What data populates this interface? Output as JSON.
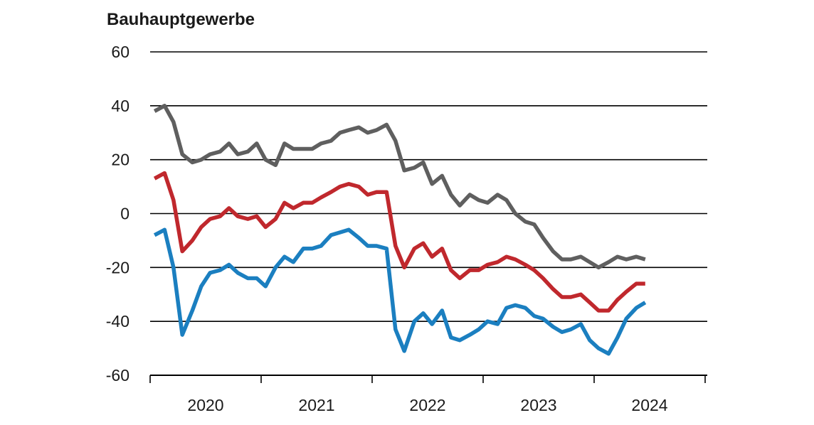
{
  "chart_data": {
    "type": "line",
    "title": "Bauhauptgewerbe",
    "xlabel": "",
    "ylabel": "",
    "ylim": [
      -60,
      60
    ],
    "yticks": [
      -60,
      -40,
      -20,
      0,
      20,
      40,
      60
    ],
    "ytick_labels": [
      "-60",
      "-40",
      "-20",
      "0",
      "20",
      "40",
      "60"
    ],
    "xlim": [
      2020.0,
      2025.0
    ],
    "year_labels": [
      "2020",
      "2021",
      "2022",
      "2023",
      "2024"
    ],
    "grid": true,
    "series": [
      {
        "color": "#5f5f5f",
        "x": [
          2020.04,
          2020.13,
          2020.21,
          2020.29,
          2020.38,
          2020.46,
          2020.54,
          2020.63,
          2020.71,
          2020.79,
          2020.88,
          2020.96,
          2021.04,
          2021.13,
          2021.21,
          2021.29,
          2021.38,
          2021.46,
          2021.54,
          2021.63,
          2021.71,
          2021.79,
          2021.88,
          2021.96,
          2022.04,
          2022.13,
          2022.21,
          2022.29,
          2022.38,
          2022.46,
          2022.54,
          2022.63,
          2022.71,
          2022.79,
          2022.88,
          2022.96,
          2023.04,
          2023.13,
          2023.21,
          2023.29,
          2023.38,
          2023.46,
          2023.54,
          2023.63,
          2023.71,
          2023.79,
          2023.88,
          2023.96,
          2024.04,
          2024.13,
          2024.21,
          2024.29,
          2024.38,
          2024.46
        ],
        "values": [
          38,
          40,
          34,
          22,
          19,
          20,
          22,
          23,
          26,
          22,
          23,
          26,
          20,
          18,
          26,
          24,
          24,
          24,
          26,
          27,
          30,
          31,
          32,
          30,
          31,
          33,
          27,
          16,
          17,
          19,
          11,
          14,
          7,
          3,
          7,
          5,
          4,
          7,
          5,
          0,
          -3,
          -4,
          -9,
          -14,
          -17,
          -17,
          -16,
          -18,
          -20,
          -18,
          -16,
          -17,
          -16,
          -17
        ]
      },
      {
        "color": "#c0282d",
        "x": [
          2020.04,
          2020.13,
          2020.21,
          2020.29,
          2020.38,
          2020.46,
          2020.54,
          2020.63,
          2020.71,
          2020.79,
          2020.88,
          2020.96,
          2021.04,
          2021.13,
          2021.21,
          2021.29,
          2021.38,
          2021.46,
          2021.54,
          2021.63,
          2021.71,
          2021.79,
          2021.88,
          2021.96,
          2022.04,
          2022.13,
          2022.21,
          2022.29,
          2022.38,
          2022.46,
          2022.54,
          2022.63,
          2022.71,
          2022.79,
          2022.88,
          2022.96,
          2023.04,
          2023.13,
          2023.21,
          2023.29,
          2023.38,
          2023.46,
          2023.54,
          2023.63,
          2023.71,
          2023.79,
          2023.88,
          2023.96,
          2024.04,
          2024.13,
          2024.21,
          2024.29,
          2024.38,
          2024.46
        ],
        "values": [
          13,
          15,
          5,
          -14,
          -10,
          -5,
          -2,
          -1,
          2,
          -1,
          -2,
          -1,
          -5,
          -2,
          4,
          2,
          4,
          4,
          6,
          8,
          10,
          11,
          10,
          7,
          8,
          8,
          -12,
          -20,
          -13,
          -11,
          -16,
          -13,
          -21,
          -24,
          -21,
          -21,
          -19,
          -18,
          -16,
          -17,
          -19,
          -21,
          -24,
          -28,
          -31,
          -31,
          -30,
          -33,
          -36,
          -36,
          -32,
          -29,
          -26,
          -26
        ]
      },
      {
        "color": "#1b7fc0",
        "x": [
          2020.04,
          2020.13,
          2020.21,
          2020.29,
          2020.38,
          2020.46,
          2020.54,
          2020.63,
          2020.71,
          2020.79,
          2020.88,
          2020.96,
          2021.04,
          2021.13,
          2021.21,
          2021.29,
          2021.38,
          2021.46,
          2021.54,
          2021.63,
          2021.71,
          2021.79,
          2021.88,
          2021.96,
          2022.04,
          2022.13,
          2022.21,
          2022.29,
          2022.38,
          2022.46,
          2022.54,
          2022.63,
          2022.71,
          2022.79,
          2022.88,
          2022.96,
          2023.04,
          2023.13,
          2023.21,
          2023.29,
          2023.38,
          2023.46,
          2023.54,
          2023.63,
          2023.71,
          2023.79,
          2023.88,
          2023.96,
          2024.04,
          2024.13,
          2024.21,
          2024.29,
          2024.38,
          2024.46
        ],
        "values": [
          -8,
          -6,
          -20,
          -45,
          -36,
          -27,
          -22,
          -21,
          -19,
          -22,
          -24,
          -24,
          -27,
          -20,
          -16,
          -18,
          -13,
          -13,
          -12,
          -8,
          -7,
          -6,
          -9,
          -12,
          -12,
          -13,
          -43,
          -51,
          -40,
          -37,
          -41,
          -36,
          -46,
          -47,
          -45,
          -43,
          -40,
          -41,
          -35,
          -34,
          -35,
          -38,
          -39,
          -42,
          -44,
          -43,
          -41,
          -47,
          -50,
          -52,
          -46,
          -39,
          -35,
          -33
        ]
      }
    ]
  }
}
